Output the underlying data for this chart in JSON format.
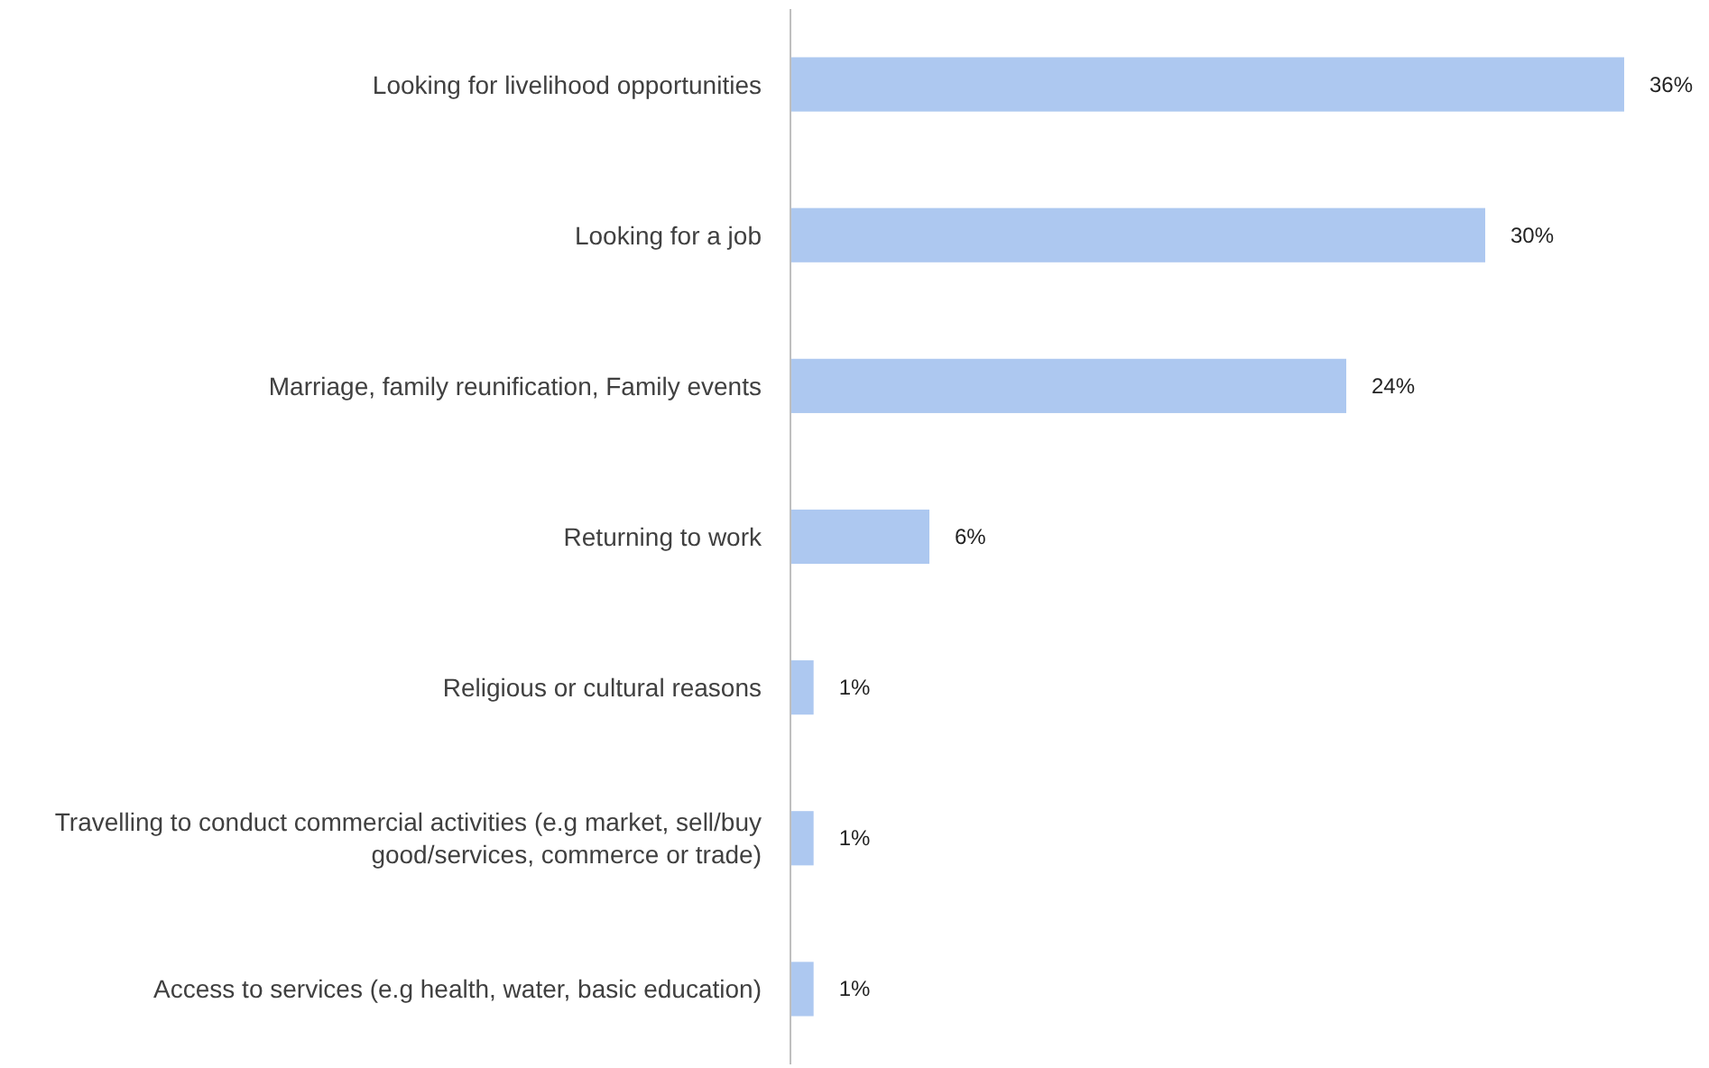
{
  "chart_data": {
    "type": "bar",
    "orientation": "horizontal",
    "categories": [
      "Looking for livelihood opportunities",
      "Looking for a job",
      "Marriage, family reunification, Family events",
      "Returning to work",
      "Religious or cultural reasons",
      "Travelling to conduct commercial activities (e.g market, sell/buy good/services, commerce or trade)",
      "Access to services (e.g health, water, basic education)"
    ],
    "values": [
      36,
      30,
      24,
      6,
      1,
      1,
      1
    ],
    "value_labels": [
      "36%",
      "30%",
      "24%",
      "6%",
      "1%",
      "1%",
      "1%"
    ],
    "color": "#adc8f0"
  }
}
